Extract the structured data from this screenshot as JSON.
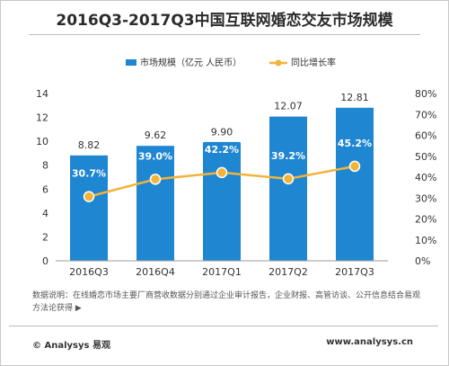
{
  "title": "2016Q3-2017Q3中国互联网婚恋交友市场规模",
  "note": "数据说明：在线婚恋市场主要厂商营收数据分别通过企业审计报告，企业财报、高管访谈、公开信息结合易观方法论获得 ▶",
  "footer": {
    "brand": "© Analysys 易观",
    "site": "www.analysys.cn"
  },
  "colors": {
    "bar": "#1f86d2",
    "line": "#f2b33b",
    "label_box": "#1f86d2"
  },
  "chart_data": {
    "type": "bar",
    "categories": [
      "2016Q3",
      "2016Q4",
      "2017Q1",
      "2017Q2",
      "2017Q3"
    ],
    "series": [
      {
        "name": "市场规模（亿元 人民币）",
        "type": "bar",
        "axis": "left",
        "values": [
          8.82,
          9.62,
          9.9,
          12.07,
          12.81
        ],
        "labels": [
          "8.82",
          "9.62",
          "9.90",
          "12.07",
          "12.81"
        ]
      },
      {
        "name": "同比增长率",
        "type": "line",
        "axis": "right",
        "values": [
          30.7,
          39.0,
          42.2,
          39.2,
          45.2
        ],
        "labels": [
          "30.7%",
          "39.0%",
          "42.2%",
          "39.2%",
          "45.2%"
        ]
      }
    ],
    "y_left": {
      "min": 0,
      "max": 14,
      "ticks": [
        "0",
        "2",
        "4",
        "6",
        "8",
        "10",
        "12",
        "14"
      ]
    },
    "y_right": {
      "min": 0,
      "max": 80,
      "ticks": [
        "0%",
        "10%",
        "20%",
        "30%",
        "40%",
        "50%",
        "60%",
        "70%",
        "80%"
      ]
    },
    "legend_position": "top",
    "grid": false
  }
}
